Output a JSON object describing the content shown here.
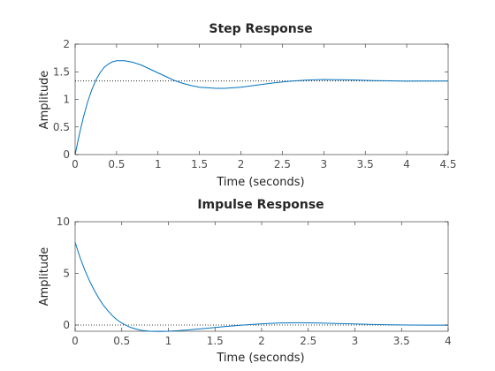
{
  "colors": {
    "series": "#0072bd",
    "reference": "#000000",
    "axes": "#262626"
  },
  "chart_data": [
    {
      "type": "line",
      "title": "Step Response",
      "xlabel": "Time (seconds)",
      "ylabel": "Amplitude",
      "xlim": [
        0,
        4.5
      ],
      "ylim": [
        0,
        2
      ],
      "xticks": [
        0,
        0.5,
        1,
        1.5,
        2,
        2.5,
        3,
        3.5,
        4,
        4.5
      ],
      "xtick_labels": [
        "0",
        "0.5",
        "1",
        "1.5",
        "2",
        "2.5",
        "3",
        "3.5",
        "4",
        "4.5"
      ],
      "yticks": [
        0,
        0.5,
        1,
        1.5,
        2
      ],
      "ytick_labels": [
        "0",
        "0.5",
        "1",
        "1.5",
        "2"
      ],
      "grid": false,
      "reference_line": {
        "y": 1.333,
        "style": "dotted"
      },
      "series": [
        {
          "x": [
            0,
            0.05,
            0.1,
            0.15,
            0.2,
            0.25,
            0.3,
            0.35,
            0.4,
            0.45,
            0.5,
            0.55,
            0.6,
            0.7,
            0.8,
            0.9,
            1.0,
            1.1,
            1.2,
            1.3,
            1.4,
            1.5,
            1.6,
            1.7,
            1.8,
            1.9,
            2.0,
            2.2,
            2.4,
            2.6,
            2.8,
            3.0,
            3.2,
            3.4,
            3.6,
            3.8,
            4.0,
            4.2,
            4.5
          ],
          "y": [
            0,
            0.36,
            0.68,
            0.95,
            1.17,
            1.35,
            1.48,
            1.58,
            1.64,
            1.68,
            1.7,
            1.7,
            1.7,
            1.67,
            1.62,
            1.55,
            1.48,
            1.41,
            1.34,
            1.29,
            1.25,
            1.22,
            1.21,
            1.2,
            1.2,
            1.21,
            1.22,
            1.26,
            1.3,
            1.33,
            1.35,
            1.36,
            1.355,
            1.35,
            1.34,
            1.335,
            1.33,
            1.333,
            1.333
          ]
        }
      ]
    },
    {
      "type": "line",
      "title": "Impulse Response",
      "xlabel": "Time (seconds)",
      "ylabel": "Amplitude",
      "xlim": [
        0,
        4
      ],
      "ylim": [
        -0.6,
        10
      ],
      "xticks": [
        0,
        0.5,
        1,
        1.5,
        2,
        2.5,
        3,
        3.5,
        4
      ],
      "xtick_labels": [
        "0",
        "0.5",
        "1",
        "1.5",
        "2",
        "2.5",
        "3",
        "3.5",
        "4"
      ],
      "yticks": [
        0,
        5,
        10
      ],
      "ytick_labels": [
        "0",
        "5",
        "10"
      ],
      "grid": false,
      "reference_line": {
        "y": 0,
        "style": "dotted"
      },
      "series": [
        {
          "x": [
            0,
            0.05,
            0.1,
            0.15,
            0.2,
            0.25,
            0.3,
            0.35,
            0.4,
            0.45,
            0.5,
            0.55,
            0.6,
            0.7,
            0.8,
            0.9,
            1.0,
            1.1,
            1.2,
            1.3,
            1.4,
            1.6,
            1.8,
            2.0,
            2.2,
            2.4,
            2.6,
            2.8,
            3.0,
            3.2,
            3.4,
            3.6,
            3.8,
            4.0
          ],
          "y": [
            8.0,
            6.6,
            5.4,
            4.35,
            3.45,
            2.65,
            1.95,
            1.4,
            0.9,
            0.5,
            0.2,
            -0.05,
            -0.25,
            -0.5,
            -0.6,
            -0.62,
            -0.6,
            -0.55,
            -0.48,
            -0.4,
            -0.32,
            -0.15,
            0.0,
            0.12,
            0.2,
            0.22,
            0.2,
            0.15,
            0.1,
            0.05,
            0.02,
            0.0,
            -0.01,
            -0.01
          ]
        }
      ]
    }
  ]
}
